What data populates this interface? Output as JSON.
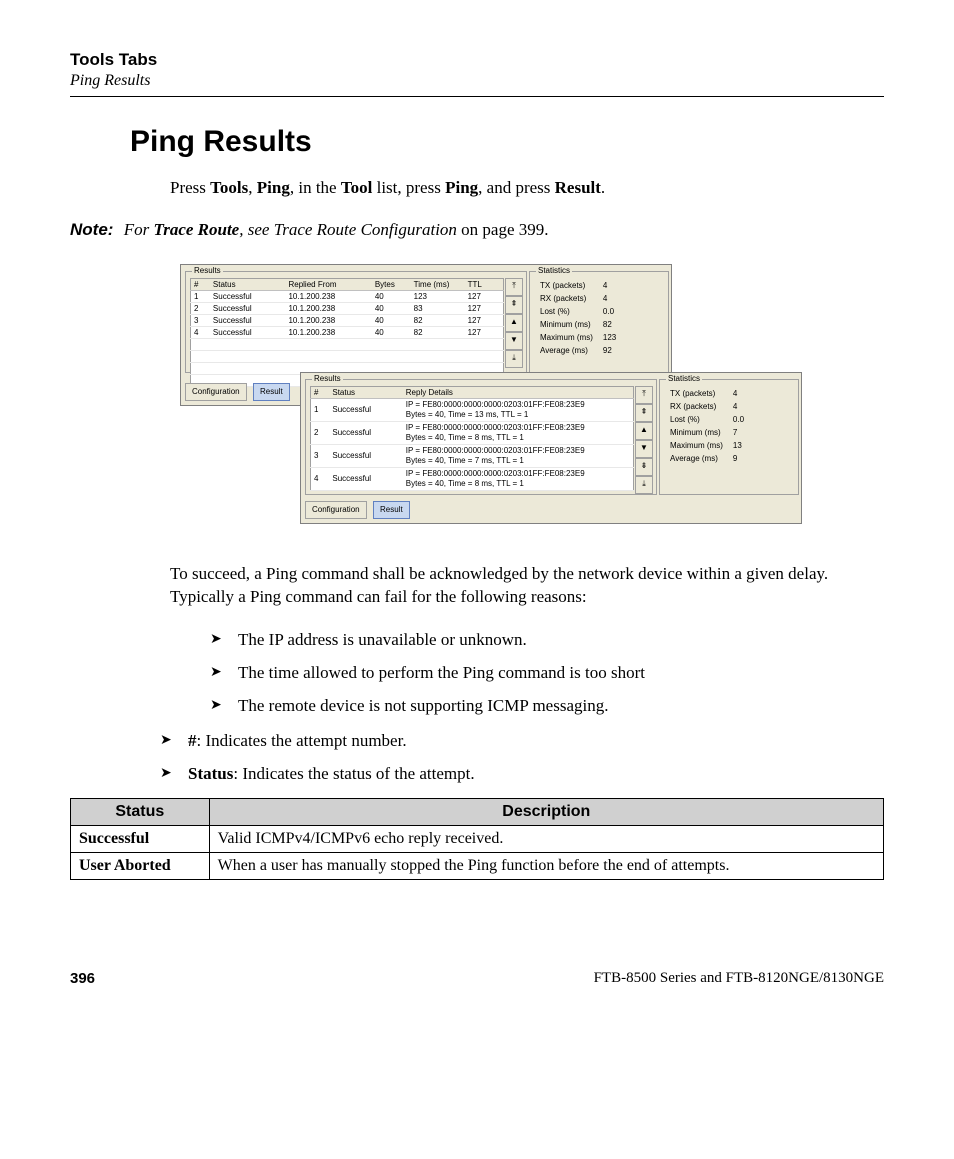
{
  "header": {
    "section": "Tools Tabs",
    "subtitle": "Ping Results"
  },
  "heading": "Ping Results",
  "intro": {
    "pre": "Press ",
    "b1": "Tools",
    "t1": ", ",
    "b2": "Ping",
    "t2": ", in the ",
    "b3": "Tool",
    "t3": " list, press ",
    "b4": "Ping",
    "t4": ", and press ",
    "b5": "Result",
    "t5": "."
  },
  "note": {
    "label": "Note:",
    "pre": " For ",
    "bi": "Trace Route",
    "mid": ", see Trace Route Configuration",
    "post": " on page 399."
  },
  "panel1": {
    "results_label": "Results",
    "stats_label": "Statistics",
    "columns": [
      "#",
      "Status",
      "Replied From",
      "Bytes",
      "Time (ms)",
      "TTL"
    ],
    "rows": [
      [
        "1",
        "Successful",
        "10.1.200.238",
        "40",
        "123",
        "127"
      ],
      [
        "2",
        "Successful",
        "10.1.200.238",
        "40",
        "83",
        "127"
      ],
      [
        "3",
        "Successful",
        "10.1.200.238",
        "40",
        "82",
        "127"
      ],
      [
        "4",
        "Successful",
        "10.1.200.238",
        "40",
        "82",
        "127"
      ]
    ],
    "stats": [
      [
        "TX (packets)",
        "4"
      ],
      [
        "RX (packets)",
        "4"
      ],
      [
        "Lost (%)",
        "0.0"
      ],
      [
        "Minimum (ms)",
        "82"
      ],
      [
        "Maximum (ms)",
        "123"
      ],
      [
        "Average (ms)",
        "92"
      ]
    ],
    "tab_config": "Configuration",
    "tab_result": "Result"
  },
  "panel2": {
    "results_label": "Results",
    "stats_label": "Statistics",
    "columns": [
      "#",
      "Status",
      "Reply Details"
    ],
    "rows": [
      [
        "1",
        "Successful",
        "IP = FE80:0000:0000:0000:0203:01FF:FE08:23E9\nBytes = 40, Time = 13 ms, TTL = 1"
      ],
      [
        "2",
        "Successful",
        "IP = FE80:0000:0000:0000:0203:01FF:FE08:23E9\nBytes = 40, Time = 8 ms, TTL = 1"
      ],
      [
        "3",
        "Successful",
        "IP = FE80:0000:0000:0000:0203:01FF:FE08:23E9\nBytes = 40, Time = 7 ms, TTL = 1"
      ],
      [
        "4",
        "Successful",
        "IP = FE80:0000:0000:0000:0203:01FF:FE08:23E9\nBytes = 40, Time = 8 ms, TTL = 1"
      ]
    ],
    "stats": [
      [
        "TX (packets)",
        "4"
      ],
      [
        "RX (packets)",
        "4"
      ],
      [
        "Lost (%)",
        "0.0"
      ],
      [
        "Minimum (ms)",
        "7"
      ],
      [
        "Maximum (ms)",
        "13"
      ],
      [
        "Average (ms)",
        "9"
      ]
    ],
    "tab_config": "Configuration",
    "tab_result": "Result"
  },
  "para2": "To succeed, a Ping command shall be acknowledged by the network device within a given delay. Typically a Ping command can fail for the following reasons:",
  "inner_bullets": [
    "The IP address is unavailable or unknown.",
    "The time allowed to perform the Ping command is too short",
    "The remote device is not supporting ICMP messaging."
  ],
  "outer_bullets": [
    {
      "b": "#",
      "t": ": Indicates the attempt number."
    },
    {
      "b": "Status",
      "t": ": Indicates the status of the attempt."
    }
  ],
  "status_table": {
    "headers": [
      "Status",
      "Description"
    ],
    "rows": [
      [
        "Successful",
        "Valid ICMPv4/ICMPv6 echo reply received."
      ],
      [
        "User Aborted",
        "When a user has manually stopped the Ping function before the end of attempts."
      ]
    ]
  },
  "footer": {
    "page": "396",
    "doc": "FTB-8500 Series and FTB-8120NGE/8130NGE"
  }
}
